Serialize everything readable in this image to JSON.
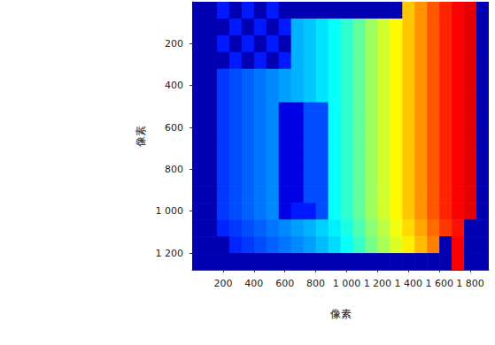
{
  "chart_data": {
    "type": "heatmap",
    "xlabel": "像素",
    "ylabel": "像素",
    "xlim": [
      0,
      1920
    ],
    "ylim": [
      1280,
      0
    ],
    "xticks": [
      200,
      400,
      600,
      800,
      {
        "value": 1000,
        "label": "1 000"
      },
      {
        "value": 1200,
        "label": "1 200"
      },
      {
        "value": 1400,
        "label": "1 400"
      },
      {
        "value": 1600,
        "label": "1 600"
      },
      {
        "value": 1800,
        "label": "1 800"
      }
    ],
    "yticks": [
      200,
      400,
      600,
      800,
      {
        "value": 1000,
        "label": "1 000"
      },
      {
        "value": 1200,
        "label": "1 200"
      }
    ],
    "x": [
      40,
      120,
      200,
      280,
      360,
      440,
      520,
      600,
      680,
      760,
      840,
      920,
      1000,
      1080,
      1160,
      1240,
      1320,
      1400,
      1480,
      1560,
      1640,
      1720,
      1800,
      1880
    ],
    "y": [
      40,
      120,
      200,
      280,
      360,
      440,
      520,
      600,
      680,
      760,
      840,
      920,
      1000,
      1080,
      1160,
      1240
    ],
    "z": [
      [
        0.05,
        0.05,
        0.15,
        0.05,
        0.15,
        0.05,
        0.15,
        0.05,
        0.05,
        0.05,
        0.05,
        0.05,
        0.05,
        0.05,
        0.05,
        0.05,
        0.05,
        0.68,
        0.73,
        0.79,
        0.84,
        0.88,
        0.9,
        0.05
      ],
      [
        0.05,
        0.05,
        0.05,
        0.15,
        0.05,
        0.15,
        0.05,
        0.15,
        0.3,
        0.32,
        0.35,
        0.38,
        0.42,
        0.47,
        0.53,
        0.58,
        0.63,
        0.68,
        0.73,
        0.79,
        0.84,
        0.88,
        0.9,
        0.05
      ],
      [
        0.05,
        0.05,
        0.15,
        0.05,
        0.15,
        0.05,
        0.15,
        0.05,
        0.3,
        0.32,
        0.35,
        0.38,
        0.42,
        0.47,
        0.53,
        0.58,
        0.63,
        0.68,
        0.73,
        0.79,
        0.84,
        0.88,
        0.9,
        0.05
      ],
      [
        0.05,
        0.05,
        0.05,
        0.15,
        0.05,
        0.15,
        0.05,
        0.15,
        0.3,
        0.32,
        0.35,
        0.38,
        0.42,
        0.47,
        0.53,
        0.58,
        0.63,
        0.68,
        0.73,
        0.79,
        0.84,
        0.88,
        0.9,
        0.05
      ],
      [
        0.05,
        0.05,
        0.18,
        0.2,
        0.22,
        0.24,
        0.26,
        0.28,
        0.3,
        0.32,
        0.35,
        0.38,
        0.42,
        0.47,
        0.53,
        0.58,
        0.63,
        0.68,
        0.73,
        0.79,
        0.84,
        0.88,
        0.9,
        0.05
      ],
      [
        0.05,
        0.05,
        0.18,
        0.2,
        0.22,
        0.24,
        0.26,
        0.28,
        0.3,
        0.32,
        0.35,
        0.38,
        0.42,
        0.47,
        0.53,
        0.58,
        0.63,
        0.68,
        0.73,
        0.79,
        0.84,
        0.88,
        0.9,
        0.05
      ],
      [
        0.05,
        0.05,
        0.18,
        0.2,
        0.22,
        0.24,
        0.26,
        0.1,
        0.1,
        0.2,
        0.2,
        0.38,
        0.42,
        0.47,
        0.53,
        0.58,
        0.63,
        0.68,
        0.73,
        0.79,
        0.84,
        0.88,
        0.9,
        0.05
      ],
      [
        0.05,
        0.05,
        0.18,
        0.2,
        0.22,
        0.24,
        0.26,
        0.1,
        0.1,
        0.2,
        0.2,
        0.38,
        0.42,
        0.47,
        0.53,
        0.58,
        0.63,
        0.68,
        0.73,
        0.79,
        0.84,
        0.88,
        0.9,
        0.05
      ],
      [
        0.05,
        0.05,
        0.18,
        0.2,
        0.22,
        0.24,
        0.26,
        0.1,
        0.1,
        0.2,
        0.2,
        0.38,
        0.42,
        0.47,
        0.53,
        0.58,
        0.63,
        0.68,
        0.73,
        0.79,
        0.84,
        0.88,
        0.9,
        0.05
      ],
      [
        0.05,
        0.05,
        0.18,
        0.2,
        0.22,
        0.24,
        0.26,
        0.1,
        0.1,
        0.2,
        0.2,
        0.38,
        0.42,
        0.47,
        0.53,
        0.58,
        0.63,
        0.68,
        0.73,
        0.79,
        0.84,
        0.88,
        0.9,
        0.05
      ],
      [
        0.05,
        0.05,
        0.18,
        0.2,
        0.22,
        0.24,
        0.26,
        0.1,
        0.1,
        0.2,
        0.2,
        0.38,
        0.42,
        0.47,
        0.53,
        0.58,
        0.63,
        0.68,
        0.73,
        0.79,
        0.84,
        0.88,
        0.9,
        0.05
      ],
      [
        0.05,
        0.05,
        0.18,
        0.2,
        0.22,
        0.24,
        0.26,
        0.1,
        0.1,
        0.2,
        0.2,
        0.38,
        0.42,
        0.47,
        0.53,
        0.58,
        0.63,
        0.68,
        0.73,
        0.79,
        0.84,
        0.88,
        0.9,
        0.05
      ],
      [
        0.05,
        0.05,
        0.18,
        0.2,
        0.22,
        0.24,
        0.26,
        0.1,
        0.15,
        0.15,
        0.2,
        0.38,
        0.42,
        0.47,
        0.53,
        0.58,
        0.63,
        0.68,
        0.73,
        0.79,
        0.84,
        0.88,
        0.9,
        0.05
      ],
      [
        0.05,
        0.05,
        0.16,
        0.18,
        0.2,
        0.22,
        0.24,
        0.26,
        0.28,
        0.3,
        0.33,
        0.36,
        0.4,
        0.45,
        0.51,
        0.56,
        0.61,
        0.66,
        0.71,
        0.77,
        0.82,
        0.86,
        0.05,
        0.05
      ],
      [
        0.05,
        0.05,
        0.05,
        0.16,
        0.18,
        0.2,
        0.22,
        0.24,
        0.26,
        0.28,
        0.31,
        0.34,
        0.38,
        0.43,
        0.49,
        0.54,
        0.59,
        0.64,
        0.69,
        0.75,
        0.05,
        0.88,
        0.05,
        0.05
      ],
      [
        0.05,
        0.05,
        0.05,
        0.05,
        0.05,
        0.05,
        0.05,
        0.05,
        0.05,
        0.05,
        0.05,
        0.05,
        0.05,
        0.05,
        0.05,
        0.05,
        0.05,
        0.05,
        0.05,
        0.05,
        0.05,
        0.88,
        0.05,
        0.05
      ]
    ],
    "zlim": [
      0,
      1
    ]
  }
}
